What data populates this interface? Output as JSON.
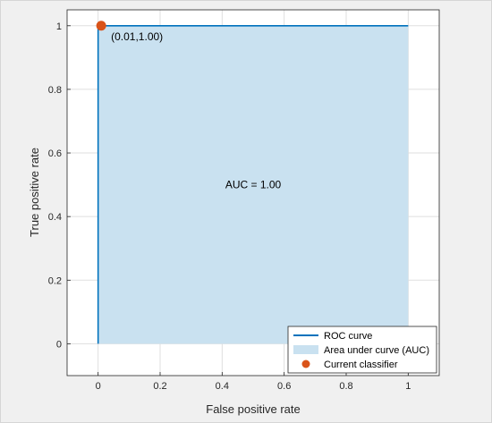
{
  "chart_data": {
    "type": "area",
    "xlabel": "False positive rate",
    "ylabel": "True positive rate",
    "xlim": [
      -0.1,
      1.1
    ],
    "ylim": [
      -0.1,
      1.05
    ],
    "xticks": [
      "0",
      "0.2",
      "0.4",
      "0.6",
      "0.8",
      "1"
    ],
    "yticks": [
      "0",
      "0.2",
      "0.4",
      "0.6",
      "0.8",
      "1"
    ],
    "grid": true,
    "series": [
      {
        "name": "ROC curve",
        "kind": "line",
        "color": "#0072bd",
        "x": [
          0,
          0,
          1
        ],
        "y": [
          0,
          1,
          1
        ]
      },
      {
        "name": "Area under curve (AUC)",
        "kind": "area",
        "color": "#c9e1f0",
        "x": [
          0,
          0,
          1,
          1
        ],
        "y": [
          0,
          1,
          1,
          0
        ]
      },
      {
        "name": "Current classifier",
        "kind": "point",
        "color": "#d95319",
        "x": [
          0.01
        ],
        "y": [
          1.0
        ]
      }
    ],
    "annotations": [
      {
        "text": "(0.01,1.00)",
        "x": 0.01,
        "y": 1.0
      },
      {
        "text": "AUC = 1.00",
        "x": 0.5,
        "y": 0.5
      }
    ],
    "legend_position": "bottom-right"
  }
}
